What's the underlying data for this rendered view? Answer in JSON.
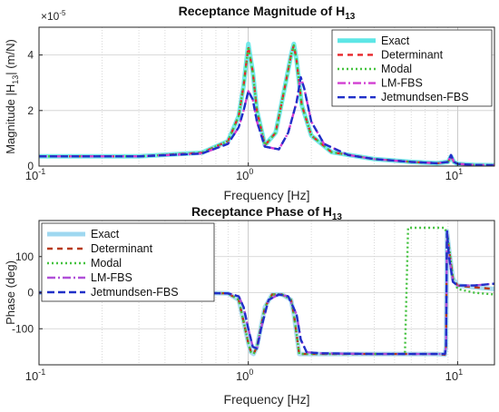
{
  "chart_data": [
    {
      "type": "line",
      "title_main": "Receptance Magnitude of H",
      "title_sub": "13",
      "xlabel": "Frequency [Hz]",
      "ylabel_pre": "Magnitude  |H",
      "ylabel_sub": "13",
      "ylabel_post": "|  (m/N)",
      "y_exponent_label": "×10",
      "y_exponent_power": "-5",
      "xscale": "log",
      "xlim": [
        0.1,
        15
      ],
      "ylim": [
        0,
        5
      ],
      "xticks": [
        0.1,
        1,
        10
      ],
      "xtick_labels": [
        "10",
        "10",
        "10"
      ],
      "xtick_powers": [
        "-1",
        "0",
        "1"
      ],
      "yticks": [
        0,
        2,
        4
      ],
      "ytick_labels": [
        "0",
        "2",
        "4"
      ],
      "grid": true,
      "legend_position": "top-right",
      "series": [
        {
          "name": "Exact",
          "color": "#5ee6e6",
          "dash": "solid",
          "x": [
            0.1,
            0.3,
            0.6,
            0.8,
            0.9,
            0.95,
            1.0,
            1.05,
            1.1,
            1.2,
            1.35,
            1.5,
            1.6,
            1.65,
            1.7,
            1.8,
            2.0,
            2.5,
            4,
            6,
            8,
            9,
            9.3,
            9.6,
            10,
            12,
            15
          ],
          "y": [
            0.35,
            0.35,
            0.48,
            0.9,
            1.8,
            2.9,
            4.4,
            3.4,
            2.0,
            0.75,
            1.2,
            2.9,
            4.0,
            4.4,
            3.8,
            2.2,
            1.1,
            0.5,
            0.25,
            0.15,
            0.1,
            0.15,
            0.35,
            0.15,
            0.08,
            0.04,
            0.03
          ]
        },
        {
          "name": "Determinant",
          "color": "#e8262b",
          "dash": "6,5",
          "x": [
            0.1,
            0.3,
            0.6,
            0.8,
            0.9,
            0.95,
            1.0,
            1.05,
            1.1,
            1.2,
            1.35,
            1.5,
            1.6,
            1.65,
            1.7,
            1.8,
            2.0,
            2.5,
            4,
            6,
            8,
            9,
            9.3,
            9.6,
            10,
            12,
            15
          ],
          "y": [
            0.35,
            0.35,
            0.48,
            0.9,
            1.8,
            2.9,
            4.3,
            3.4,
            2.0,
            0.75,
            1.2,
            2.9,
            4.0,
            4.35,
            3.8,
            2.2,
            1.1,
            0.5,
            0.25,
            0.15,
            0.1,
            0.15,
            0.35,
            0.15,
            0.08,
            0.04,
            0.03
          ]
        },
        {
          "name": "Modal",
          "color": "#44c23f",
          "dash": "2,3",
          "x": [
            0.1,
            0.3,
            0.6,
            0.8,
            0.9,
            0.95,
            1.0,
            1.05,
            1.1,
            1.2,
            1.35,
            1.5,
            1.6,
            1.65,
            1.7,
            1.8,
            2.0,
            2.5,
            4,
            6,
            8,
            9,
            9.3,
            9.6,
            10,
            12,
            15
          ],
          "y": [
            0.35,
            0.35,
            0.48,
            0.9,
            1.8,
            2.9,
            4.3,
            3.4,
            2.0,
            0.75,
            1.2,
            2.9,
            4.0,
            4.35,
            3.8,
            2.2,
            1.1,
            0.5,
            0.25,
            0.15,
            0.1,
            0.15,
            0.35,
            0.15,
            0.08,
            0.04,
            0.03
          ]
        },
        {
          "name": "LM-FBS",
          "color": "#d23fd2",
          "dash": "9,3,2,3",
          "x": [
            0.1,
            0.3,
            0.6,
            0.8,
            0.9,
            0.95,
            1.0,
            1.05,
            1.1,
            1.2,
            1.4,
            1.55,
            1.7,
            1.78,
            1.85,
            2.0,
            2.3,
            3,
            4,
            6,
            8,
            9,
            9.3,
            9.6,
            10,
            12,
            15
          ],
          "y": [
            0.35,
            0.35,
            0.45,
            0.8,
            1.4,
            2.0,
            2.7,
            2.4,
            1.6,
            0.7,
            0.6,
            1.2,
            2.3,
            3.2,
            2.8,
            1.6,
            0.8,
            0.4,
            0.25,
            0.15,
            0.1,
            0.15,
            0.4,
            0.15,
            0.08,
            0.04,
            0.03
          ]
        },
        {
          "name": "Jetmundsen-FBS",
          "color": "#2030c8",
          "dash": "8,4",
          "x": [
            0.1,
            0.3,
            0.6,
            0.8,
            0.9,
            0.95,
            1.0,
            1.05,
            1.1,
            1.2,
            1.4,
            1.55,
            1.7,
            1.78,
            1.85,
            2.0,
            2.3,
            3,
            4,
            6,
            8,
            9,
            9.3,
            9.6,
            10,
            12,
            15
          ],
          "y": [
            0.35,
            0.35,
            0.45,
            0.8,
            1.4,
            2.0,
            2.7,
            2.4,
            1.6,
            0.7,
            0.6,
            1.2,
            2.3,
            3.2,
            2.8,
            1.6,
            0.8,
            0.4,
            0.25,
            0.15,
            0.1,
            0.15,
            0.4,
            0.15,
            0.08,
            0.04,
            0.03
          ]
        }
      ]
    },
    {
      "type": "line",
      "title_main": "Receptance Phase of H",
      "title_sub": "13",
      "xlabel": "Frequency [Hz]",
      "ylabel": "Phase (deg)",
      "xscale": "log",
      "xlim": [
        0.1,
        15
      ],
      "ylim": [
        -200,
        200
      ],
      "xticks": [
        0.1,
        1,
        10
      ],
      "xtick_labels": [
        "10",
        "10",
        "10"
      ],
      "xtick_powers": [
        "-1",
        "0",
        "1"
      ],
      "yticks": [
        -100,
        0,
        100
      ],
      "ytick_labels": [
        "-100",
        "0",
        "100"
      ],
      "grid": true,
      "legend_position": "top-left",
      "series": [
        {
          "name": "Exact",
          "color": "#9fd8f0",
          "dash": "solid",
          "x": [
            0.1,
            0.5,
            0.8,
            0.9,
            0.95,
            1.0,
            1.03,
            1.06,
            1.1,
            1.2,
            1.3,
            1.45,
            1.6,
            1.65,
            1.75,
            2.0,
            4,
            6,
            8,
            8.7,
            8.8,
            8.9,
            9.1,
            9.5,
            10,
            12,
            15
          ],
          "y": [
            0,
            0,
            -2,
            -20,
            -80,
            -140,
            -165,
            -170,
            -150,
            -40,
            -5,
            -5,
            -20,
            -60,
            -170,
            -170,
            -170,
            -170,
            -170,
            -172,
            -150,
            170,
            120,
            40,
            20,
            15,
            10
          ]
        },
        {
          "name": "Determinant",
          "color": "#b83a1a",
          "dash": "6,5",
          "x": [
            0.1,
            0.5,
            0.8,
            0.9,
            0.95,
            1.0,
            1.03,
            1.06,
            1.1,
            1.2,
            1.3,
            1.45,
            1.6,
            1.65,
            1.75,
            2.0,
            4,
            6,
            8,
            8.7,
            8.8,
            8.9,
            9.1,
            9.5,
            10,
            12,
            15
          ],
          "y": [
            0,
            0,
            -2,
            -20,
            -80,
            -140,
            -165,
            -170,
            -150,
            -40,
            -5,
            -5,
            -20,
            -60,
            -170,
            -170,
            -170,
            -170,
            -170,
            -172,
            -150,
            170,
            120,
            40,
            20,
            15,
            10
          ]
        },
        {
          "name": "Modal",
          "color": "#44c23f",
          "dash": "2,3",
          "x": [
            0.1,
            0.5,
            0.8,
            0.9,
            0.95,
            1.0,
            1.03,
            1.06,
            1.1,
            1.2,
            1.3,
            1.45,
            1.6,
            1.65,
            1.75,
            2.0,
            4,
            5.6,
            5.8,
            6,
            8,
            8.7,
            9,
            9.5,
            10,
            12,
            15
          ],
          "y": [
            0,
            0,
            -2,
            -20,
            -80,
            -140,
            -165,
            -170,
            -150,
            -40,
            -5,
            -5,
            -20,
            -60,
            -170,
            -170,
            -170,
            -170,
            180,
            180,
            180,
            180,
            150,
            40,
            10,
            0,
            -5
          ]
        },
        {
          "name": "LM-FBS",
          "color": "#b050d8",
          "dash": "9,3,2,3",
          "x": [
            0.1,
            0.5,
            0.8,
            0.9,
            0.95,
            1.0,
            1.05,
            1.1,
            1.15,
            1.25,
            1.4,
            1.55,
            1.7,
            1.78,
            1.9,
            2.2,
            4,
            6,
            8,
            8.7,
            8.8,
            8.9,
            9.1,
            9.5,
            10,
            12,
            15
          ],
          "y": [
            0,
            0,
            -2,
            -10,
            -40,
            -100,
            -150,
            -155,
            -100,
            -20,
            -5,
            -10,
            -60,
            -130,
            -165,
            -168,
            -170,
            -170,
            -170,
            -170,
            -150,
            170,
            100,
            30,
            20,
            20,
            25
          ]
        },
        {
          "name": "Jetmundsen-FBS",
          "color": "#2030c8",
          "dash": "8,4",
          "x": [
            0.1,
            0.5,
            0.8,
            0.9,
            0.95,
            1.0,
            1.05,
            1.1,
            1.15,
            1.25,
            1.4,
            1.55,
            1.7,
            1.78,
            1.9,
            2.2,
            4,
            6,
            8,
            8.7,
            8.8,
            8.9,
            9.1,
            9.5,
            10,
            12,
            15
          ],
          "y": [
            0,
            0,
            -2,
            -10,
            -40,
            -100,
            -150,
            -155,
            -100,
            -20,
            -5,
            -10,
            -60,
            -130,
            -165,
            -168,
            -170,
            -170,
            -170,
            -170,
            -150,
            170,
            100,
            30,
            20,
            20,
            25
          ]
        }
      ]
    }
  ]
}
